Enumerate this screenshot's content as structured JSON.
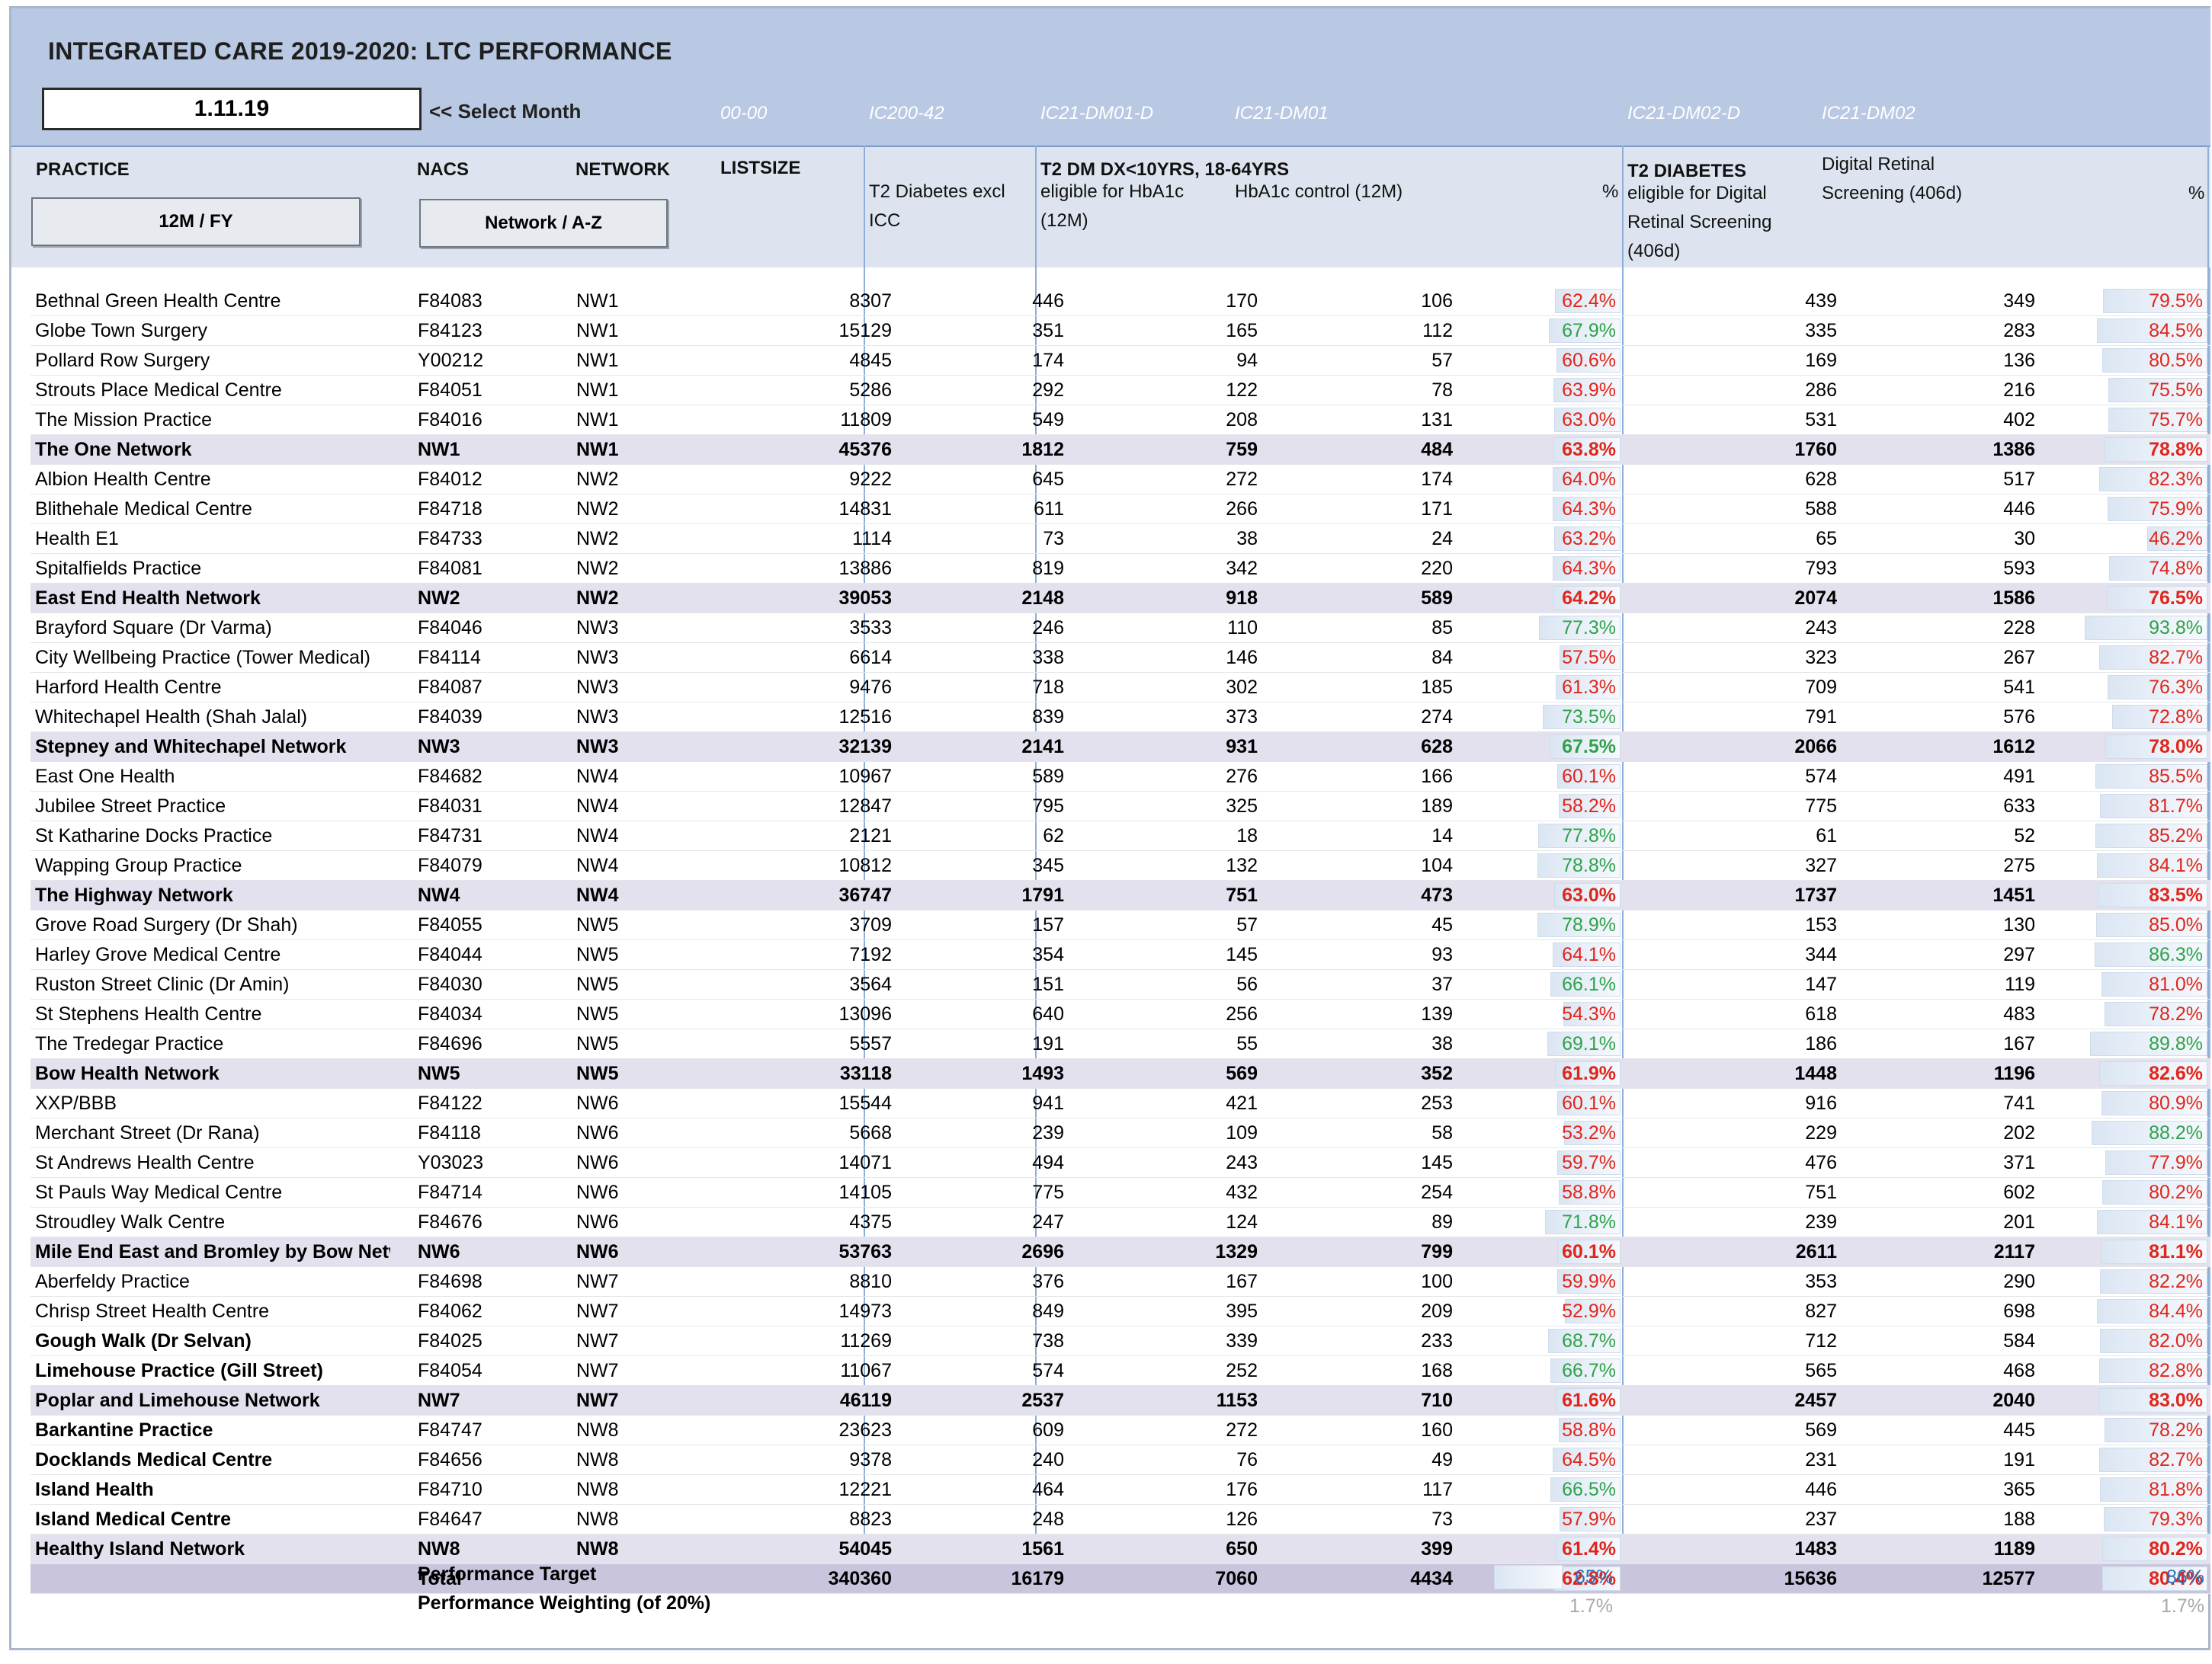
{
  "title": "INTEGRATED CARE 2019-2020: LTC PERFORMANCE",
  "month": "1.11.19",
  "select_month_label": "<< Select Month",
  "codes": [
    "00-00",
    "IC200-42",
    "IC21-DM01-D",
    "IC21-DM01",
    "IC21-DM02-D",
    "IC21-DM02"
  ],
  "headers": {
    "practice": "PRACTICE",
    "nacs": "NACS",
    "network": "NETWORK",
    "listsize": "LISTSIZE",
    "t2_line1": "T2 Diabetes excl",
    "t2_line2": "ICC",
    "group1": "T2 DM DX<10YRS, 18-64YRS",
    "elig_line1": "eligible for HbA1c",
    "elig_line2": "(12M)",
    "control": "HbA1c control (12M)",
    "pct": "%",
    "group2": "T2 DIABETES",
    "dre_line1": "eligible for Digital",
    "dre_line2": "Retinal Screening",
    "dre_line3": "(406d)",
    "dr_line1": "Digital Retinal",
    "dr_line2": "Screening (406d)",
    "pct2": "%"
  },
  "buttons": {
    "fy": "12M / FY",
    "sort": "Network / A-Z"
  },
  "rows": [
    {
      "name": "Bethnal Green Health Centre",
      "nacs": "F84083",
      "net": "NW1",
      "list": "8307",
      "t2": "446",
      "elig": "170",
      "ctrl": "106",
      "p1": "62.4%",
      "c1": "red",
      "f1": 0.624,
      "dre": "439",
      "dr": "349",
      "p2": "79.5%",
      "c2": "red",
      "f2": 0.795,
      "type": "practice"
    },
    {
      "name": "Globe Town Surgery",
      "nacs": "F84123",
      "net": "NW1",
      "list": "15129",
      "t2": "351",
      "elig": "165",
      "ctrl": "112",
      "p1": "67.9%",
      "c1": "green",
      "f1": 0.679,
      "dre": "335",
      "dr": "283",
      "p2": "84.5%",
      "c2": "red",
      "f2": 0.845,
      "type": "practice"
    },
    {
      "name": "Pollard Row Surgery",
      "nacs": "Y00212",
      "net": "NW1",
      "list": "4845",
      "t2": "174",
      "elig": "94",
      "ctrl": "57",
      "p1": "60.6%",
      "c1": "red",
      "f1": 0.606,
      "dre": "169",
      "dr": "136",
      "p2": "80.5%",
      "c2": "red",
      "f2": 0.805,
      "type": "practice"
    },
    {
      "name": "Strouts Place Medical Centre",
      "nacs": "F84051",
      "net": "NW1",
      "list": "5286",
      "t2": "292",
      "elig": "122",
      "ctrl": "78",
      "p1": "63.9%",
      "c1": "red",
      "f1": 0.639,
      "dre": "286",
      "dr": "216",
      "p2": "75.5%",
      "c2": "red",
      "f2": 0.755,
      "type": "practice"
    },
    {
      "name": "The Mission Practice",
      "nacs": "F84016",
      "net": "NW1",
      "list": "11809",
      "t2": "549",
      "elig": "208",
      "ctrl": "131",
      "p1": "63.0%",
      "c1": "red",
      "f1": 0.63,
      "dre": "531",
      "dr": "402",
      "p2": "75.7%",
      "c2": "red",
      "f2": 0.757,
      "type": "practice"
    },
    {
      "name": "The One Network",
      "nacs": "NW1",
      "net": "NW1",
      "list": "45376",
      "t2": "1812",
      "elig": "759",
      "ctrl": "484",
      "p1": "63.8%",
      "c1": "red",
      "f1": 0.638,
      "dre": "1760",
      "dr": "1386",
      "p2": "78.8%",
      "c2": "red",
      "f2": 0.788,
      "type": "net"
    },
    {
      "name": "Albion Health Centre",
      "nacs": "F84012",
      "net": "NW2",
      "list": "9222",
      "t2": "645",
      "elig": "272",
      "ctrl": "174",
      "p1": "64.0%",
      "c1": "red",
      "f1": 0.64,
      "dre": "628",
      "dr": "517",
      "p2": "82.3%",
      "c2": "red",
      "f2": 0.823,
      "type": "practice"
    },
    {
      "name": "Blithehale Medical Centre",
      "nacs": "F84718",
      "net": "NW2",
      "list": "14831",
      "t2": "611",
      "elig": "266",
      "ctrl": "171",
      "p1": "64.3%",
      "c1": "red",
      "f1": 0.643,
      "dre": "588",
      "dr": "446",
      "p2": "75.9%",
      "c2": "red",
      "f2": 0.759,
      "type": "practice"
    },
    {
      "name": "Health E1",
      "nacs": "F84733",
      "net": "NW2",
      "list": "1114",
      "t2": "73",
      "elig": "38",
      "ctrl": "24",
      "p1": "63.2%",
      "c1": "red",
      "f1": 0.632,
      "dre": "65",
      "dr": "30",
      "p2": "46.2%",
      "c2": "red",
      "f2": 0.462,
      "type": "practice"
    },
    {
      "name": "Spitalfields Practice",
      "nacs": "F84081",
      "net": "NW2",
      "list": "13886",
      "t2": "819",
      "elig": "342",
      "ctrl": "220",
      "p1": "64.3%",
      "c1": "red",
      "f1": 0.643,
      "dre": "793",
      "dr": "593",
      "p2": "74.8%",
      "c2": "red",
      "f2": 0.748,
      "type": "practice"
    },
    {
      "name": "East End Health Network",
      "nacs": "NW2",
      "net": "NW2",
      "list": "39053",
      "t2": "2148",
      "elig": "918",
      "ctrl": "589",
      "p1": "64.2%",
      "c1": "red",
      "f1": 0.642,
      "dre": "2074",
      "dr": "1586",
      "p2": "76.5%",
      "c2": "red",
      "f2": 0.765,
      "type": "net"
    },
    {
      "name": "Brayford Square (Dr Varma)",
      "nacs": "F84046",
      "net": "NW3",
      "list": "3533",
      "t2": "246",
      "elig": "110",
      "ctrl": "85",
      "p1": "77.3%",
      "c1": "green",
      "f1": 0.773,
      "dre": "243",
      "dr": "228",
      "p2": "93.8%",
      "c2": "green",
      "f2": 0.938,
      "type": "practice"
    },
    {
      "name": "City Wellbeing Practice (Tower Medical)",
      "nacs": "F84114",
      "net": "NW3",
      "list": "6614",
      "t2": "338",
      "elig": "146",
      "ctrl": "84",
      "p1": "57.5%",
      "c1": "red",
      "f1": 0.575,
      "dre": "323",
      "dr": "267",
      "p2": "82.7%",
      "c2": "red",
      "f2": 0.827,
      "type": "practice"
    },
    {
      "name": "Harford Health Centre",
      "nacs": "F84087",
      "net": "NW3",
      "list": "9476",
      "t2": "718",
      "elig": "302",
      "ctrl": "185",
      "p1": "61.3%",
      "c1": "red",
      "f1": 0.613,
      "dre": "709",
      "dr": "541",
      "p2": "76.3%",
      "c2": "red",
      "f2": 0.763,
      "type": "practice"
    },
    {
      "name": "Whitechapel Health (Shah Jalal)",
      "nacs": "F84039",
      "net": "NW3",
      "list": "12516",
      "t2": "839",
      "elig": "373",
      "ctrl": "274",
      "p1": "73.5%",
      "c1": "green",
      "f1": 0.735,
      "dre": "791",
      "dr": "576",
      "p2": "72.8%",
      "c2": "red",
      "f2": 0.728,
      "type": "practice"
    },
    {
      "name": "Stepney and Whitechapel Network",
      "nacs": "NW3",
      "net": "NW3",
      "list": "32139",
      "t2": "2141",
      "elig": "931",
      "ctrl": "628",
      "p1": "67.5%",
      "c1": "green",
      "f1": 0.675,
      "dre": "2066",
      "dr": "1612",
      "p2": "78.0%",
      "c2": "red",
      "f2": 0.78,
      "type": "net"
    },
    {
      "name": "East One Health",
      "nacs": "F84682",
      "net": "NW4",
      "list": "10967",
      "t2": "589",
      "elig": "276",
      "ctrl": "166",
      "p1": "60.1%",
      "c1": "red",
      "f1": 0.601,
      "dre": "574",
      "dr": "491",
      "p2": "85.5%",
      "c2": "red",
      "f2": 0.855,
      "type": "practice"
    },
    {
      "name": "Jubilee Street Practice",
      "nacs": "F84031",
      "net": "NW4",
      "list": "12847",
      "t2": "795",
      "elig": "325",
      "ctrl": "189",
      "p1": "58.2%",
      "c1": "red",
      "f1": 0.582,
      "dre": "775",
      "dr": "633",
      "p2": "81.7%",
      "c2": "red",
      "f2": 0.817,
      "type": "practice"
    },
    {
      "name": "St Katharine Docks Practice",
      "nacs": "F84731",
      "net": "NW4",
      "list": "2121",
      "t2": "62",
      "elig": "18",
      "ctrl": "14",
      "p1": "77.8%",
      "c1": "green",
      "f1": 0.778,
      "dre": "61",
      "dr": "52",
      "p2": "85.2%",
      "c2": "red",
      "f2": 0.852,
      "type": "practice"
    },
    {
      "name": "Wapping Group Practice",
      "nacs": "F84079",
      "net": "NW4",
      "list": "10812",
      "t2": "345",
      "elig": "132",
      "ctrl": "104",
      "p1": "78.8%",
      "c1": "green",
      "f1": 0.788,
      "dre": "327",
      "dr": "275",
      "p2": "84.1%",
      "c2": "red",
      "f2": 0.841,
      "type": "practice"
    },
    {
      "name": "The Highway Network",
      "nacs": "NW4",
      "net": "NW4",
      "list": "36747",
      "t2": "1791",
      "elig": "751",
      "ctrl": "473",
      "p1": "63.0%",
      "c1": "red",
      "f1": 0.63,
      "dre": "1737",
      "dr": "1451",
      "p2": "83.5%",
      "c2": "red",
      "f2": 0.835,
      "type": "net"
    },
    {
      "name": "Grove Road Surgery (Dr Shah)",
      "nacs": "F84055",
      "net": "NW5",
      "list": "3709",
      "t2": "157",
      "elig": "57",
      "ctrl": "45",
      "p1": "78.9%",
      "c1": "green",
      "f1": 0.789,
      "dre": "153",
      "dr": "130",
      "p2": "85.0%",
      "c2": "red",
      "f2": 0.85,
      "type": "practice"
    },
    {
      "name": "Harley Grove Medical Centre",
      "nacs": "F84044",
      "net": "NW5",
      "list": "7192",
      "t2": "354",
      "elig": "145",
      "ctrl": "93",
      "p1": "64.1%",
      "c1": "red",
      "f1": 0.641,
      "dre": "344",
      "dr": "297",
      "p2": "86.3%",
      "c2": "green",
      "f2": 0.863,
      "type": "practice"
    },
    {
      "name": "Ruston Street Clinic (Dr Amin)",
      "nacs": "F84030",
      "net": "NW5",
      "list": "3564",
      "t2": "151",
      "elig": "56",
      "ctrl": "37",
      "p1": "66.1%",
      "c1": "green",
      "f1": 0.661,
      "dre": "147",
      "dr": "119",
      "p2": "81.0%",
      "c2": "red",
      "f2": 0.81,
      "type": "practice"
    },
    {
      "name": "St Stephens Health Centre",
      "nacs": "F84034",
      "net": "NW5",
      "list": "13096",
      "t2": "640",
      "elig": "256",
      "ctrl": "139",
      "p1": "54.3%",
      "c1": "red",
      "f1": 0.543,
      "dre": "618",
      "dr": "483",
      "p2": "78.2%",
      "c2": "red",
      "f2": 0.782,
      "type": "practice"
    },
    {
      "name": "The Tredegar Practice",
      "nacs": "F84696",
      "net": "NW5",
      "list": "5557",
      "t2": "191",
      "elig": "55",
      "ctrl": "38",
      "p1": "69.1%",
      "c1": "green",
      "f1": 0.691,
      "dre": "186",
      "dr": "167",
      "p2": "89.8%",
      "c2": "green",
      "f2": 0.898,
      "type": "practice"
    },
    {
      "name": "Bow Health Network",
      "nacs": "NW5",
      "net": "NW5",
      "list": "33118",
      "t2": "1493",
      "elig": "569",
      "ctrl": "352",
      "p1": "61.9%",
      "c1": "red",
      "f1": 0.619,
      "dre": "1448",
      "dr": "1196",
      "p2": "82.6%",
      "c2": "red",
      "f2": 0.826,
      "type": "net"
    },
    {
      "name": "XXP/BBB",
      "nacs": "F84122",
      "net": "NW6",
      "list": "15544",
      "t2": "941",
      "elig": "421",
      "ctrl": "253",
      "p1": "60.1%",
      "c1": "red",
      "f1": 0.601,
      "dre": "916",
      "dr": "741",
      "p2": "80.9%",
      "c2": "red",
      "f2": 0.809,
      "type": "practice"
    },
    {
      "name": "Merchant Street (Dr Rana)",
      "nacs": "F84118",
      "net": "NW6",
      "list": "5668",
      "t2": "239",
      "elig": "109",
      "ctrl": "58",
      "p1": "53.2%",
      "c1": "red",
      "f1": 0.532,
      "dre": "229",
      "dr": "202",
      "p2": "88.2%",
      "c2": "green",
      "f2": 0.882,
      "type": "practice"
    },
    {
      "name": "St Andrews Health Centre",
      "nacs": "Y03023",
      "net": "NW6",
      "list": "14071",
      "t2": "494",
      "elig": "243",
      "ctrl": "145",
      "p1": "59.7%",
      "c1": "red",
      "f1": 0.597,
      "dre": "476",
      "dr": "371",
      "p2": "77.9%",
      "c2": "red",
      "f2": 0.779,
      "type": "practice"
    },
    {
      "name": "St Pauls Way Medical Centre",
      "nacs": "F84714",
      "net": "NW6",
      "list": "14105",
      "t2": "775",
      "elig": "432",
      "ctrl": "254",
      "p1": "58.8%",
      "c1": "red",
      "f1": 0.588,
      "dre": "751",
      "dr": "602",
      "p2": "80.2%",
      "c2": "red",
      "f2": 0.802,
      "type": "practice"
    },
    {
      "name": "Stroudley Walk Centre",
      "nacs": "F84676",
      "net": "NW6",
      "list": "4375",
      "t2": "247",
      "elig": "124",
      "ctrl": "89",
      "p1": "71.8%",
      "c1": "green",
      "f1": 0.718,
      "dre": "239",
      "dr": "201",
      "p2": "84.1%",
      "c2": "red",
      "f2": 0.841,
      "type": "practice"
    },
    {
      "name": "Mile End East and Bromley by Bow Network",
      "nacs": "NW6",
      "net": "NW6",
      "list": "53763",
      "t2": "2696",
      "elig": "1329",
      "ctrl": "799",
      "p1": "60.1%",
      "c1": "red",
      "f1": 0.601,
      "dre": "2611",
      "dr": "2117",
      "p2": "81.1%",
      "c2": "red",
      "f2": 0.811,
      "type": "net"
    },
    {
      "name": "Aberfeldy Practice",
      "nacs": "F84698",
      "net": "NW7",
      "list": "8810",
      "t2": "376",
      "elig": "167",
      "ctrl": "100",
      "p1": "59.9%",
      "c1": "red",
      "f1": 0.599,
      "dre": "353",
      "dr": "290",
      "p2": "82.2%",
      "c2": "red",
      "f2": 0.822,
      "type": "practice"
    },
    {
      "name": "Chrisp Street Health Centre",
      "nacs": "F84062",
      "net": "NW7",
      "list": "14973",
      "t2": "849",
      "elig": "395",
      "ctrl": "209",
      "p1": "52.9%",
      "c1": "red",
      "f1": 0.529,
      "dre": "827",
      "dr": "698",
      "p2": "84.4%",
      "c2": "red",
      "f2": 0.844,
      "type": "practice"
    },
    {
      "name": "Gough Walk (Dr Selvan)",
      "nacs": "F84025",
      "net": "NW7",
      "list": "11269",
      "t2": "738",
      "elig": "339",
      "ctrl": "233",
      "p1": "68.7%",
      "c1": "green",
      "f1": 0.687,
      "dre": "712",
      "dr": "584",
      "p2": "82.0%",
      "c2": "red",
      "f2": 0.82,
      "type": "bold"
    },
    {
      "name": "Limehouse Practice (Gill Street)",
      "nacs": "F84054",
      "net": "NW7",
      "list": "11067",
      "t2": "574",
      "elig": "252",
      "ctrl": "168",
      "p1": "66.7%",
      "c1": "green",
      "f1": 0.667,
      "dre": "565",
      "dr": "468",
      "p2": "82.8%",
      "c2": "red",
      "f2": 0.828,
      "type": "bold"
    },
    {
      "name": "Poplar and Limehouse Network",
      "nacs": "NW7",
      "net": "NW7",
      "list": "46119",
      "t2": "2537",
      "elig": "1153",
      "ctrl": "710",
      "p1": "61.6%",
      "c1": "red",
      "f1": 0.616,
      "dre": "2457",
      "dr": "2040",
      "p2": "83.0%",
      "c2": "red",
      "f2": 0.83,
      "type": "net"
    },
    {
      "name": "Barkantine Practice",
      "nacs": "F84747",
      "net": "NW8",
      "list": "23623",
      "t2": "609",
      "elig": "272",
      "ctrl": "160",
      "p1": "58.8%",
      "c1": "red",
      "f1": 0.588,
      "dre": "569",
      "dr": "445",
      "p2": "78.2%",
      "c2": "red",
      "f2": 0.782,
      "type": "bold"
    },
    {
      "name": "Docklands Medical Centre",
      "nacs": "F84656",
      "net": "NW8",
      "list": "9378",
      "t2": "240",
      "elig": "76",
      "ctrl": "49",
      "p1": "64.5%",
      "c1": "red",
      "f1": 0.645,
      "dre": "231",
      "dr": "191",
      "p2": "82.7%",
      "c2": "red",
      "f2": 0.827,
      "type": "bold"
    },
    {
      "name": "Island Health",
      "nacs": "F84710",
      "net": "NW8",
      "list": "12221",
      "t2": "464",
      "elig": "176",
      "ctrl": "117",
      "p1": "66.5%",
      "c1": "green",
      "f1": 0.665,
      "dre": "446",
      "dr": "365",
      "p2": "81.8%",
      "c2": "red",
      "f2": 0.818,
      "type": "bold"
    },
    {
      "name": "Island Medical Centre",
      "nacs": "F84647",
      "net": "NW8",
      "list": "8823",
      "t2": "248",
      "elig": "126",
      "ctrl": "73",
      "p1": "57.9%",
      "c1": "red",
      "f1": 0.579,
      "dre": "237",
      "dr": "188",
      "p2": "79.3%",
      "c2": "red",
      "f2": 0.793,
      "type": "bold"
    },
    {
      "name": "Healthy Island Network",
      "nacs": "NW8",
      "net": "NW8",
      "list": "54045",
      "t2": "1561",
      "elig": "650",
      "ctrl": "399",
      "p1": "61.4%",
      "c1": "red",
      "f1": 0.614,
      "dre": "1483",
      "dr": "1189",
      "p2": "80.2%",
      "c2": "red",
      "f2": 0.802,
      "type": "net"
    },
    {
      "name": "",
      "nacs": "Total",
      "net": "",
      "list": "340360",
      "t2": "16179",
      "elig": "7060",
      "ctrl": "4434",
      "p1": "62.8%",
      "c1": "red",
      "f1": 0.628,
      "dre": "15636",
      "dr": "12577",
      "p2": "80.4%",
      "c2": "red",
      "f2": 0.804,
      "type": "total"
    }
  ],
  "footer": {
    "target_label": "Performance Target",
    "target_1": "65%",
    "target_2": "86%",
    "target_1_fill": 0.65,
    "target_2_fill": 0.86,
    "weighting_label": "Performance Weighting (of 20%)",
    "weight_1": "1.7%",
    "weight_2": "1.7%"
  }
}
